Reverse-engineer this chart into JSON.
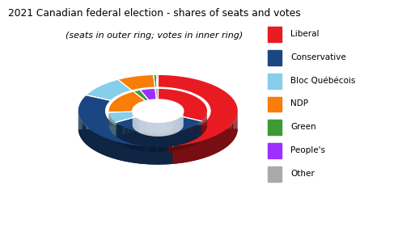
{
  "title": "2021 Canadian federal election - shares of seats and votes",
  "subtitle": "(seats in outer ring; votes in inner ring)",
  "parties": [
    "Liberal",
    "Conservative",
    "Bloc Québécois",
    "NDP",
    "Green",
    "People's",
    "Other"
  ],
  "colors": [
    "#E81B23",
    "#1A4782",
    "#87CEEB",
    "#F97D09",
    "#3D9B35",
    "#9B30FF",
    "#AAAAAA"
  ],
  "seats": [
    159,
    119,
    32,
    25,
    2,
    0,
    1
  ],
  "votes_pct": [
    32.62,
    33.74,
    7.64,
    17.82,
    2.33,
    4.94,
    0.91
  ],
  "legend_labels": [
    "Liberal",
    "Conservative",
    "Bloc Québécois",
    "NDP",
    "Green",
    "People's",
    "Other"
  ],
  "tilt": 0.45,
  "depth_outer": 0.28,
  "depth_inner": 0.22,
  "R_out_outer": 1.25,
  "R_in_outer": 0.82,
  "R_out_inner": 0.77,
  "R_in_inner": 0.4
}
